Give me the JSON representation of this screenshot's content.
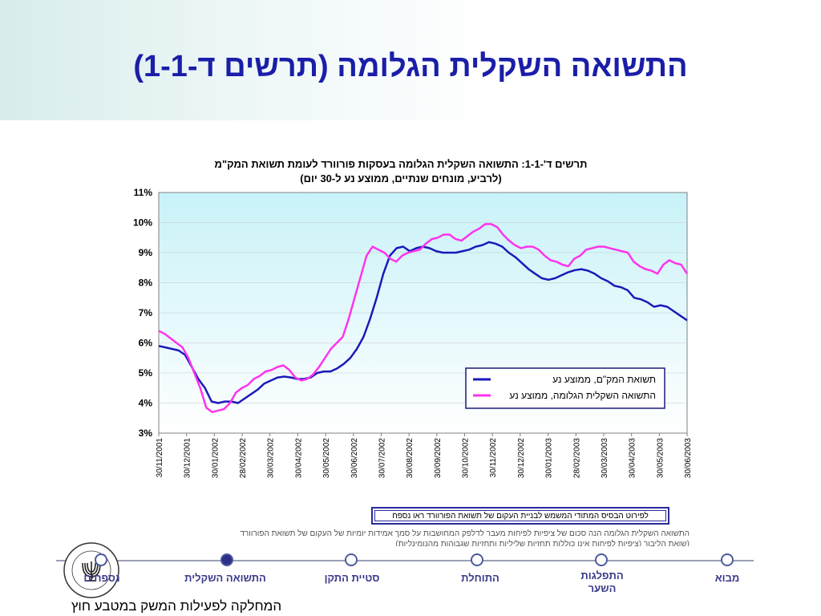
{
  "slide_title": "התשואה השקלית הגלומה (תרשים ד-1-1)",
  "chart_data": {
    "type": "line",
    "title_line1": "תרשים ד'-1-1:  התשואה השקלית הגלומה בעסקות פורוורד לעומת תשואת המק\"מ",
    "title_line2": "(לרביע, מונחים שנתיים, ממוצע נע ל-30 יום)",
    "y_ticks": [
      "11%",
      "10%",
      "9%",
      "8%",
      "7%",
      "6%",
      "5%",
      "4%",
      "3%"
    ],
    "ylim": [
      3,
      11
    ],
    "x_ticks": [
      "30/11/2001",
      "30/12/2001",
      "30/01/2002",
      "28/02/2002",
      "30/03/2002",
      "30/04/2002",
      "30/05/2002",
      "30/06/2002",
      "30/07/2002",
      "30/08/2002",
      "30/09/2002",
      "30/10/2002",
      "30/11/2002",
      "30/12/2002",
      "30/01/2003",
      "28/02/2003",
      "30/03/2003",
      "30/04/2003",
      "30/05/2003",
      "30/06/2003"
    ],
    "legend_position": "bottom-right",
    "series": [
      {
        "name": "תשואת המק\"ם, ממוצע נע",
        "color": "#1a1ab8",
        "values": [
          5.9,
          5.85,
          5.8,
          5.75,
          5.6,
          5.2,
          4.8,
          4.5,
          4.05,
          4.0,
          4.05,
          4.05,
          4.0,
          4.15,
          4.3,
          4.45,
          4.65,
          4.75,
          4.85,
          4.88,
          4.85,
          4.8,
          4.8,
          4.85,
          5.0,
          5.05,
          5.05,
          5.15,
          5.3,
          5.5,
          5.8,
          6.2,
          6.8,
          7.5,
          8.3,
          8.9,
          9.15,
          9.2,
          9.05,
          9.15,
          9.2,
          9.15,
          9.05,
          9.0,
          9.0,
          9.0,
          9.05,
          9.1,
          9.2,
          9.25,
          9.35,
          9.3,
          9.2,
          9.0,
          8.85,
          8.65,
          8.45,
          8.3,
          8.15,
          8.1,
          8.15,
          8.25,
          8.35,
          8.42,
          8.45,
          8.4,
          8.3,
          8.15,
          8.05,
          7.9,
          7.85,
          7.75,
          7.5,
          7.45,
          7.35,
          7.2,
          7.25,
          7.2,
          7.05,
          6.9,
          6.75
        ]
      },
      {
        "name": "התשואה השקלית הגלומה, ממוצע נע",
        "color": "#ff33ee",
        "values": [
          6.4,
          6.3,
          6.15,
          6.0,
          5.85,
          5.5,
          5.0,
          4.5,
          3.85,
          3.7,
          3.75,
          3.8,
          4.0,
          4.35,
          4.5,
          4.6,
          4.8,
          4.9,
          5.05,
          5.1,
          5.2,
          5.25,
          5.1,
          4.85,
          4.75,
          4.8,
          4.95,
          5.2,
          5.5,
          5.8,
          6.0,
          6.2,
          6.8,
          7.5,
          8.2,
          8.9,
          9.2,
          9.1,
          9.0,
          8.8,
          8.7,
          8.9,
          9.0,
          9.05,
          9.1,
          9.3,
          9.45,
          9.5,
          9.6,
          9.6,
          9.45,
          9.4,
          9.55,
          9.7,
          9.8,
          9.95,
          9.95,
          9.85,
          9.6,
          9.4,
          9.25,
          9.15,
          9.2,
          9.2,
          9.1,
          8.9,
          8.75,
          8.7,
          8.6,
          8.55,
          8.8,
          8.9,
          9.1,
          9.15,
          9.2,
          9.2,
          9.15,
          9.1,
          9.05,
          9.0,
          8.7,
          8.55,
          8.45,
          8.4,
          8.3,
          8.6,
          8.75,
          8.65,
          8.6,
          8.3
        ]
      }
    ]
  },
  "info_box_text": "לפירוט הבסיס המתודי המשמש לבניית העקום של תשואת הפורוורד ראו נספח",
  "footnote_line1": "התשואה השקלית הגלומה הנה סכום של ציפיות לפיחות מעבר לדלפק המחושבות על סמך אמידות יומיות של העקום של תשואת הפורוורד",
  "footnote_line2": "(שואת הליבור (ציפיות לפיחות אינן כוללות תחזיות שליליות ותחזיות שגבוהות מהנומינליות)",
  "nav": {
    "items": [
      {
        "label": "נספחים"
      },
      {
        "label": "התשואה השקלית"
      },
      {
        "label": "סטיית התקן"
      },
      {
        "label": "התוחלת"
      },
      {
        "label": "התפלגות השער"
      },
      {
        "label": "מבוא"
      }
    ]
  },
  "logo_text": "בנק ישראל BANK OF ISRAEL",
  "department": "המחלקה לפעילות המשק במטבע חוץ"
}
